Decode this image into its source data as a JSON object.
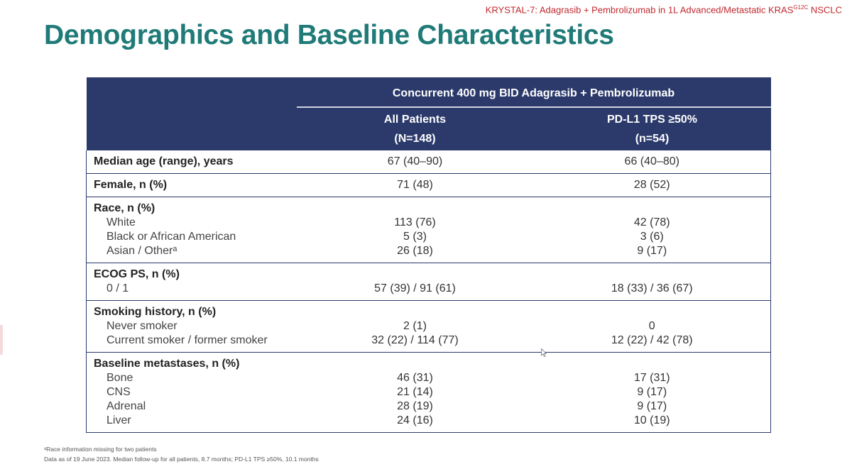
{
  "banner": {
    "text": "KRYSTAL-7: Adagrasib + Pembrolizumab in 1L Advanced/Metastatic KRAS",
    "superscript": "G12C",
    "suffix": " NSCLC"
  },
  "title": "Demographics and Baseline Characteristics",
  "table": {
    "group_header": "Concurrent 400 mg BID Adagrasib + Pembrolizumab",
    "columns": [
      {
        "label": "All Patients",
        "n": "(N=148)"
      },
      {
        "label": "PD-L1 TPS ≥50%",
        "n": "(n=54)"
      }
    ],
    "rows": [
      {
        "label": "Median age (range), years",
        "sub": [],
        "values": [
          [
            "67 (40–90)"
          ],
          [
            "66 (40–80)"
          ]
        ]
      },
      {
        "label": "Female, n (%)",
        "sub": [],
        "values": [
          [
            "71 (48)"
          ],
          [
            "28 (52)"
          ]
        ]
      },
      {
        "label": "Race, n (%)",
        "sub": [
          "White",
          "Black or African American",
          "Asian / Otherᵃ"
        ],
        "values": [
          [
            "113 (76)",
            "5 (3)",
            "26 (18)"
          ],
          [
            "42 (78)",
            "3 (6)",
            "9 (17)"
          ]
        ]
      },
      {
        "label": "ECOG PS, n (%)",
        "sub": [
          "0 / 1"
        ],
        "values": [
          [
            "57 (39) / 91 (61)"
          ],
          [
            "18 (33) / 36 (67)"
          ]
        ]
      },
      {
        "label": "Smoking history, n (%)",
        "sub": [
          "Never smoker",
          "Current smoker / former smoker"
        ],
        "values": [
          [
            "2 (1)",
            "32 (22) / 114 (77)"
          ],
          [
            "0",
            "12 (22) / 42 (78)"
          ]
        ]
      },
      {
        "label": "Baseline metastases, n (%)",
        "sub": [
          "Bone",
          "CNS",
          "Adrenal",
          "Liver"
        ],
        "values": [
          [
            "46 (31)",
            "21 (14)",
            "28 (19)",
            "24 (16)"
          ],
          [
            "17 (31)",
            "9 (17)",
            "9 (17)",
            "10 (19)"
          ]
        ]
      }
    ]
  },
  "footnotes": [
    "ᵃRace information missing for two patients",
    "Data as of 19 June 2023. Median follow-up for all patients, 8.7 months; PD-L1 TPS ≥50%, 10.1 months"
  ],
  "colors": {
    "title": "#1f7a78",
    "header_bg": "#2b3a6b",
    "banner": "#c0282e"
  }
}
